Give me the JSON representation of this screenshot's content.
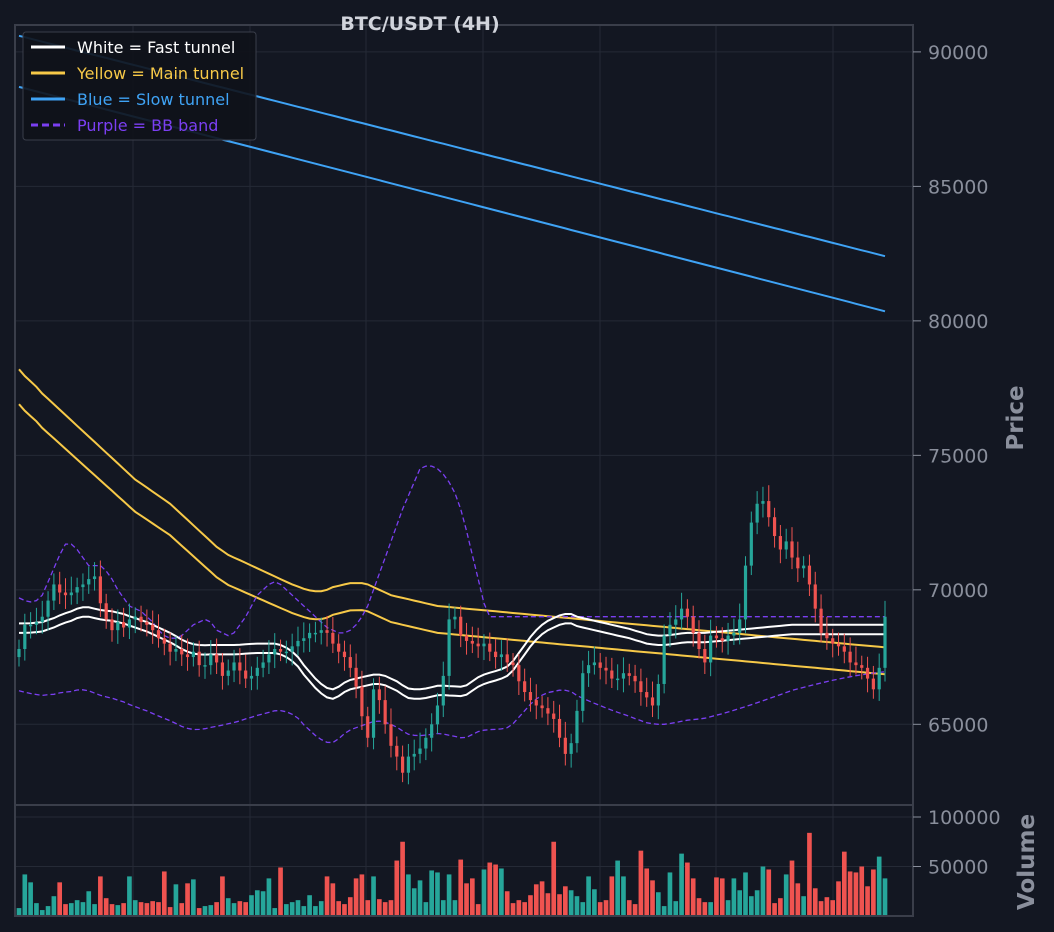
{
  "chart_data": {
    "type": "candlestick",
    "title": "BTC/USDT (4H)",
    "ylabel": "Price",
    "volume_label": "Volume",
    "ylim": [
      62000,
      91000
    ],
    "volume_ylim": [
      0,
      100000
    ],
    "yticks": [
      65000,
      70000,
      75000,
      80000,
      85000,
      90000
    ],
    "volume_ticks": [
      50000,
      100000
    ],
    "grid": true,
    "legend_position": "top-left",
    "colors": {
      "background": "#131722",
      "up": "#26a69a",
      "down": "#ef5350",
      "fast": "#ffffff",
      "main": "#f7c948",
      "slow": "#3fa3f5",
      "bb": "#7b3ff2",
      "frame": "#3a3e4a",
      "grid": "#252a36"
    },
    "legend": [
      {
        "label": "White = Fast tunnel",
        "color": "#ffffff",
        "dash": false
      },
      {
        "label": "Yellow = Main tunnel",
        "color": "#f7c948",
        "dash": false
      },
      {
        "label": "Blue = Slow tunnel",
        "color": "#3fa3f5",
        "dash": false
      },
      {
        "label": "Purple = BB band",
        "color": "#7b3ff2",
        "dash": true
      }
    ],
    "candle_count": 150,
    "close": [
      67800,
      68700,
      68700,
      68800,
      69000,
      69600,
      70200,
      69900,
      69800,
      69900,
      70100,
      70200,
      70400,
      70500,
      69500,
      68900,
      68500,
      68800,
      68600,
      68900,
      69000,
      68800,
      68700,
      68500,
      68200,
      68000,
      67700,
      67800,
      67600,
      67500,
      67700,
      67200,
      67200,
      67600,
      67300,
      66800,
      67000,
      67300,
      67000,
      66700,
      66800,
      67100,
      67300,
      67600,
      67800,
      67700,
      67700,
      67900,
      68100,
      68200,
      68400,
      68400,
      68500,
      68400,
      68000,
      67700,
      67500,
      67100,
      66400,
      65300,
      64500,
      66300,
      65900,
      65000,
      64200,
      63800,
      63200,
      63800,
      63900,
      64100,
      64500,
      65000,
      65700,
      66800,
      68900,
      69000,
      68300,
      68100,
      68000,
      67900,
      68000,
      67700,
      67500,
      67600,
      67300,
      67200,
      66600,
      66200,
      65900,
      65700,
      65600,
      65400,
      65200,
      64500,
      63900,
      64300,
      65500,
      66900,
      67200,
      67300,
      67100,
      67000,
      66700,
      66700,
      66900,
      66800,
      66600,
      66200,
      66000,
      65700,
      66500,
      68300,
      68700,
      68900,
      69300,
      69000,
      68400,
      67800,
      67300,
      68300,
      68200,
      68100,
      68300,
      68400,
      68900,
      70900,
      72500,
      73200,
      73300,
      72700,
      72000,
      71500,
      71800,
      71200,
      70800,
      70900,
      70200,
      69300,
      68400,
      68200,
      68000,
      67900,
      67700,
      67300,
      67200,
      67100,
      66700,
      66300,
      67100,
      69000
    ],
    "fast_ma": [
      68750,
      68750,
      68760,
      68780,
      68800,
      68880,
      68950,
      69050,
      69130,
      69200,
      69300,
      69350,
      69350,
      69300,
      69250,
      69220,
      69200,
      69150,
      69100,
      69020,
      68950,
      68870,
      68800,
      68700,
      68600,
      68500,
      68400,
      68280,
      68150,
      68050,
      67980,
      67950,
      67940,
      67950,
      67950,
      67950,
      67950,
      67950,
      67960,
      67980,
      67990,
      68000,
      68000,
      68000,
      68000,
      67950,
      67850,
      67700,
      67500,
      67200,
      66950,
      66700,
      66500,
      66350,
      66300,
      66400,
      66550,
      66650,
      66700,
      66750,
      66800,
      66850,
      66850,
      66800,
      66700,
      66600,
      66450,
      66330,
      66300,
      66300,
      66330,
      66380,
      66430,
      66440,
      66420,
      66410,
      66400,
      66450,
      66600,
      66750,
      66850,
      66920,
      66980,
      67050,
      67150,
      67350,
      67650,
      67950,
      68250,
      68500,
      68700,
      68850,
      68950,
      69050,
      69100,
      69100,
      69000,
      68950,
      68900,
      68850,
      68800,
      68750,
      68700,
      68650,
      68600,
      68550,
      68480,
      68420,
      68350,
      68320,
      68300,
      68300,
      68320,
      68350,
      68380,
      68400,
      68400,
      68400,
      68400,
      68420,
      68440,
      68460,
      68480,
      68500,
      68520,
      68540,
      68560,
      68580,
      68600,
      68620,
      68640,
      68660,
      68680,
      68700,
      68700,
      68700,
      68700,
      68700,
      68700,
      68700,
      68700,
      68700,
      68700,
      68700,
      68700,
      68700,
      68700,
      68700,
      68700,
      68700
    ],
    "main_upper": [
      78200,
      77950,
      77750,
      77550,
      77300,
      77100,
      76900,
      76700,
      76500,
      76300,
      76100,
      75900,
      75700,
      75500,
      75300,
      75100,
      74900,
      74700,
      74500,
      74300,
      74100,
      73950,
      73800,
      73650,
      73500,
      73350,
      73200,
      73000,
      72800,
      72600,
      72400,
      72200,
      72000,
      71800,
      71600,
      71450,
      71300,
      71200,
      71100,
      71000,
      70900,
      70800,
      70700,
      70600,
      70500,
      70400,
      70300,
      70200,
      70120,
      70040,
      69980,
      69950,
      69950,
      70000,
      70100,
      70150,
      70200,
      70250,
      70250,
      70250,
      70200,
      70100,
      70000,
      69900,
      69800,
      69750,
      69700,
      69650,
      69600,
      69550,
      69500,
      69450,
      69400,
      69380,
      69360,
      69340,
      69320,
      69300,
      69280,
      69260,
      69240,
      69220,
      69200,
      69180,
      69160,
      69140,
      69120,
      69100,
      69080,
      69060,
      69040,
      69020,
      69000,
      68980,
      68960,
      68940,
      68920,
      68900,
      68880,
      68860,
      68840,
      68820,
      68800,
      68780,
      68760,
      68740,
      68720,
      68700,
      68680,
      68660,
      68640,
      68620,
      68600,
      68580,
      68560,
      68540,
      68520,
      68500,
      68480,
      68460,
      68440,
      68420,
      68400,
      68380,
      68360,
      68340,
      68320,
      68300,
      68280,
      68260,
      68240,
      68220,
      68200,
      68180,
      68160,
      68140,
      68120,
      68100,
      68080,
      68060,
      68040,
      68020,
      68000,
      67980,
      67960,
      67940,
      67920,
      67900,
      67880,
      67860
    ],
    "bb_upper": [
      69700,
      69600,
      69550,
      69600,
      69800,
      70300,
      70800,
      71300,
      71700,
      71700,
      71500,
      71200,
      70900,
      70900,
      70900,
      70700,
      70400,
      70000,
      69700,
      69400,
      69300,
      69200,
      69000,
      68800,
      68500,
      68300,
      68200,
      68200,
      68300,
      68500,
      68700,
      68800,
      68900,
      68800,
      68500,
      68400,
      68300,
      68400,
      68700,
      69000,
      69400,
      69800,
      70000,
      70200,
      70300,
      70200,
      70000,
      69800,
      69600,
      69400,
      69200,
      69000,
      68800,
      68600,
      68500,
      68400,
      68400,
      68500,
      68700,
      69000,
      69400,
      70000,
      70600,
      71200,
      71800,
      72400,
      73000,
      73500,
      74000,
      74500,
      74600,
      74600,
      74500,
      74300,
      74000,
      73600,
      73000,
      72200,
      71300,
      70400,
      69500,
      69000,
      69000,
      69000,
      69000,
      69000,
      69000,
      69000,
      69000,
      69000,
      69000,
      69000,
      69000,
      69000,
      69000,
      69000,
      69000,
      69000,
      69000,
      69000,
      69000,
      69000,
      69000,
      69000,
      69000,
      69000,
      69000,
      69000,
      69000,
      69000,
      69000,
      69000,
      69000,
      69000,
      69000,
      69000,
      69000,
      69000,
      69000,
      69000,
      69000,
      69000,
      69000,
      69000,
      69000,
      69000,
      69000,
      69000,
      69000,
      69000,
      69000,
      69000,
      69000,
      69000,
      69000,
      69000,
      69000,
      69000,
      69000,
      69000,
      69000,
      69000,
      69000,
      69000,
      69000,
      69000,
      69000,
      69000,
      69000,
      69000
    ],
    "volume": [
      8000,
      42000,
      34000,
      13000,
      6000,
      10000,
      20000,
      34000,
      12000,
      13000,
      16000,
      14000,
      25000,
      12000,
      40000,
      18000,
      12000,
      11000,
      13000,
      40000,
      16000,
      14000,
      13000,
      15000,
      14000,
      45000,
      9000,
      32000,
      13000,
      33000,
      37000,
      8000,
      10000,
      11000,
      14000,
      40000,
      18000,
      13000,
      15000,
      14000,
      21000,
      26000,
      25000,
      38000,
      8000,
      49000,
      12000,
      14000,
      16000,
      10000,
      21000,
      10000,
      15000,
      40000,
      33000,
      15000,
      12000,
      19000,
      38000,
      42000,
      16000,
      40000,
      17000,
      14000,
      16000,
      56000,
      75000,
      42000,
      28000,
      36000,
      14000,
      46000,
      44000,
      16000,
      42000,
      16000,
      57000,
      33000,
      38000,
      12000,
      47000,
      54000,
      52000,
      48000,
      25000,
      13000,
      16000,
      14000,
      21000,
      32000,
      35000,
      23000,
      75000,
      22000,
      30000,
      26000,
      20000,
      14000,
      40000,
      27000,
      14000,
      16000,
      40000,
      56000,
      40000,
      16000,
      12000,
      66000,
      48000,
      36000,
      24000,
      10000,
      44000,
      15000,
      63000,
      54000,
      38000,
      18000,
      14000,
      14000,
      39000,
      38000,
      16000,
      38000,
      26000,
      44000,
      20000,
      26000,
      50000,
      47000,
      13000,
      18000,
      42000,
      56000,
      33000,
      20000,
      84000,
      28000,
      15000,
      19000,
      16000,
      35000,
      65000,
      45000,
      44000,
      50000,
      30000,
      47000,
      60000,
      38000
    ]
  }
}
